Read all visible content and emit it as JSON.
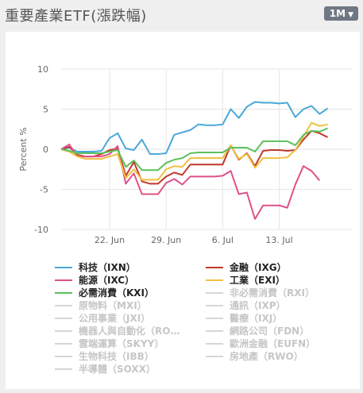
{
  "header": {
    "title": "重要產業ETF(漲跌幅)",
    "range_label": "1M"
  },
  "chart_data": {
    "type": "line",
    "ylabel": "Percent %",
    "ylim": [
      -10,
      10
    ],
    "yticks": [
      10,
      5,
      0,
      -5,
      -10
    ],
    "xlim": [
      0,
      36
    ],
    "xticks": [
      {
        "pos": 6,
        "label": "22. Jun"
      },
      {
        "pos": 13,
        "label": "29. Jun"
      },
      {
        "pos": 20,
        "label": "6. Jul"
      },
      {
        "pos": 27,
        "label": "13. Jul"
      }
    ],
    "grid": true,
    "series": [
      {
        "name": "科技（IXN）",
        "color": "#4aa8d8",
        "visible": true,
        "values": [
          0,
          0.2,
          -0.3,
          -0.3,
          -0.3,
          -0.2,
          1.4,
          2,
          0.1,
          -0.1,
          1.2,
          -0.6,
          -0.6,
          -0.5,
          1.8,
          2.1,
          2.4,
          3.1,
          3,
          3,
          3.1,
          5,
          3.9,
          5.3,
          5.9,
          5.8,
          5.8,
          5.7,
          5.8,
          4,
          5,
          5.4,
          4.4,
          5.1
        ]
      },
      {
        "name": "金融（IXG）",
        "color": "#c0392b",
        "visible": true,
        "values": [
          0,
          0.3,
          -0.7,
          -0.9,
          -0.9,
          -0.6,
          -0.1,
          0.1,
          -3.3,
          -1.6,
          -4,
          -4.3,
          -4.3,
          -3.4,
          -2.9,
          -3.2,
          -1.9,
          -1.9,
          -1.9,
          -1.9,
          -1.9,
          0.5,
          -1.3,
          -0.5,
          -2.1,
          -0.2,
          -0.1,
          -0.1,
          -0.2,
          -0.1,
          1.2,
          2.3,
          2,
          1.5
        ]
      },
      {
        "name": "能源（IXC）",
        "color": "#e0508a",
        "visible": true,
        "values": [
          0,
          0.6,
          -0.9,
          -0.9,
          -0.9,
          -0.9,
          -0.6,
          0.4,
          -4.3,
          -3,
          -5.6,
          -5.6,
          -5.6,
          -4.2,
          -3.7,
          -4.4,
          -3.4,
          -3.4,
          -3.4,
          -3.4,
          -3.3,
          -2.7,
          -5.6,
          -5.4,
          -8.7,
          -7,
          -7,
          -7,
          -7.3,
          -4.4,
          -2.1,
          -2.7,
          -3.9
        ]
      },
      {
        "name": "工業（EXI）",
        "color": "#f0c040",
        "visible": true,
        "values": [
          0,
          -0.3,
          -0.9,
          -1.2,
          -1.2,
          -1.2,
          -0.9,
          -0.6,
          -3.6,
          -2.5,
          -3.8,
          -3.8,
          -3.8,
          -2.5,
          -2.1,
          -2.2,
          -1.1,
          -1.1,
          -1.1,
          -1.1,
          -1.1,
          0.5,
          -1.2,
          -0.6,
          -2.3,
          -1.1,
          -1.1,
          -1.1,
          -1,
          -0.1,
          1.6,
          3.3,
          2.9,
          3.1
        ]
      },
      {
        "name": "必需消費（KXI）",
        "color": "#5cc05c",
        "visible": true,
        "values": [
          0,
          -0.2,
          -0.5,
          -0.5,
          -0.5,
          -0.5,
          -0.3,
          -0.1,
          -2.2,
          -1.4,
          -2.6,
          -2.6,
          -2.6,
          -1.7,
          -1.3,
          -1.1,
          -0.5,
          -0.4,
          -0.4,
          -0.4,
          -0.4,
          0.2,
          0.2,
          0.2,
          -0.3,
          1,
          1,
          1,
          1,
          0.5,
          1.8,
          2.3,
          2.2,
          2.6
        ]
      },
      {
        "name": "非必需消費（RXI）",
        "color": "#c9c9c9",
        "visible": false
      },
      {
        "name": "原物料（MXI）",
        "color": "#c9c9c9",
        "visible": false
      },
      {
        "name": "通訊（IXP）",
        "color": "#c9c9c9",
        "visible": false
      },
      {
        "name": "公用事業（JXI）",
        "color": "#c9c9c9",
        "visible": false
      },
      {
        "name": "醫療（IXJ）",
        "color": "#c9c9c9",
        "visible": false
      },
      {
        "name": "機器人與自動化（RO…",
        "color": "#c9c9c9",
        "visible": false
      },
      {
        "name": "網路公司（FDN）",
        "color": "#c9c9c9",
        "visible": false
      },
      {
        "name": "雲端運算（SKYY）",
        "color": "#c9c9c9",
        "visible": false
      },
      {
        "name": "歐洲金融（EUFN）",
        "color": "#c9c9c9",
        "visible": false
      },
      {
        "name": "生物科技（IBB）",
        "color": "#c9c9c9",
        "visible": false
      },
      {
        "name": "房地產（RWO）",
        "color": "#c9c9c9",
        "visible": false
      },
      {
        "name": "半導體（SOXX）",
        "color": "#c9c9c9",
        "visible": false
      }
    ]
  }
}
